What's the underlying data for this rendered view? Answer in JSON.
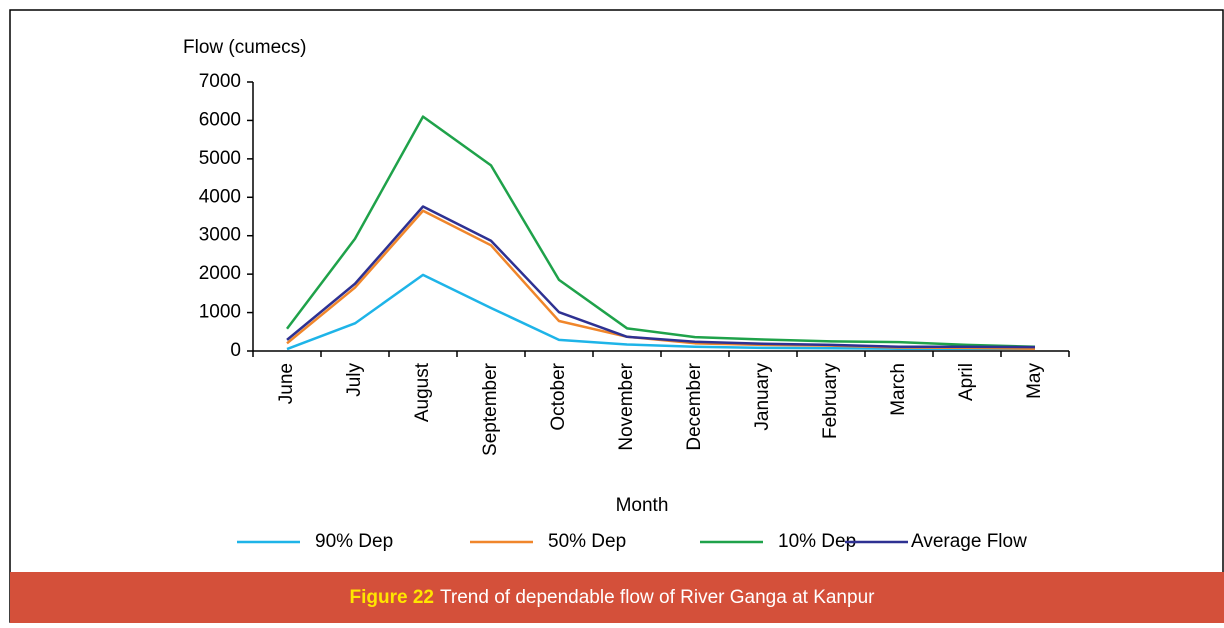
{
  "chart_data": {
    "type": "line",
    "y_axis_label": "Flow (cumecs)",
    "x_axis_label": "Month",
    "categories": [
      "June",
      "July",
      "August",
      "September",
      "October",
      "November",
      "December",
      "January",
      "February",
      "March",
      "April",
      "May"
    ],
    "series": [
      {
        "name": "90% Dep",
        "color": "#1eb4e8",
        "values": [
          50,
          720,
          1980,
          1120,
          290,
          170,
          110,
          80,
          70,
          60,
          60,
          60
        ]
      },
      {
        "name": "50% Dep",
        "color": "#f0862b",
        "values": [
          200,
          1650,
          3650,
          2750,
          780,
          370,
          200,
          160,
          140,
          90,
          80,
          60
        ]
      },
      {
        "name": "10% Dep",
        "color": "#1fa24a",
        "values": [
          580,
          2920,
          6100,
          4830,
          1850,
          590,
          360,
          300,
          250,
          230,
          160,
          110
        ]
      },
      {
        "name": "Average Flow",
        "color": "#2e3192",
        "values": [
          290,
          1750,
          3760,
          2870,
          1010,
          370,
          240,
          190,
          160,
          110,
          110,
          100
        ]
      }
    ],
    "ylim": [
      0,
      7000
    ],
    "yticks": [
      0,
      1000,
      2000,
      3000,
      4000,
      5000,
      6000,
      7000
    ],
    "grid": false,
    "legend": "bottom"
  },
  "caption": {
    "label": "Figure 22",
    "text": "Trend of dependable flow of River Ganga at Kanpur"
  }
}
